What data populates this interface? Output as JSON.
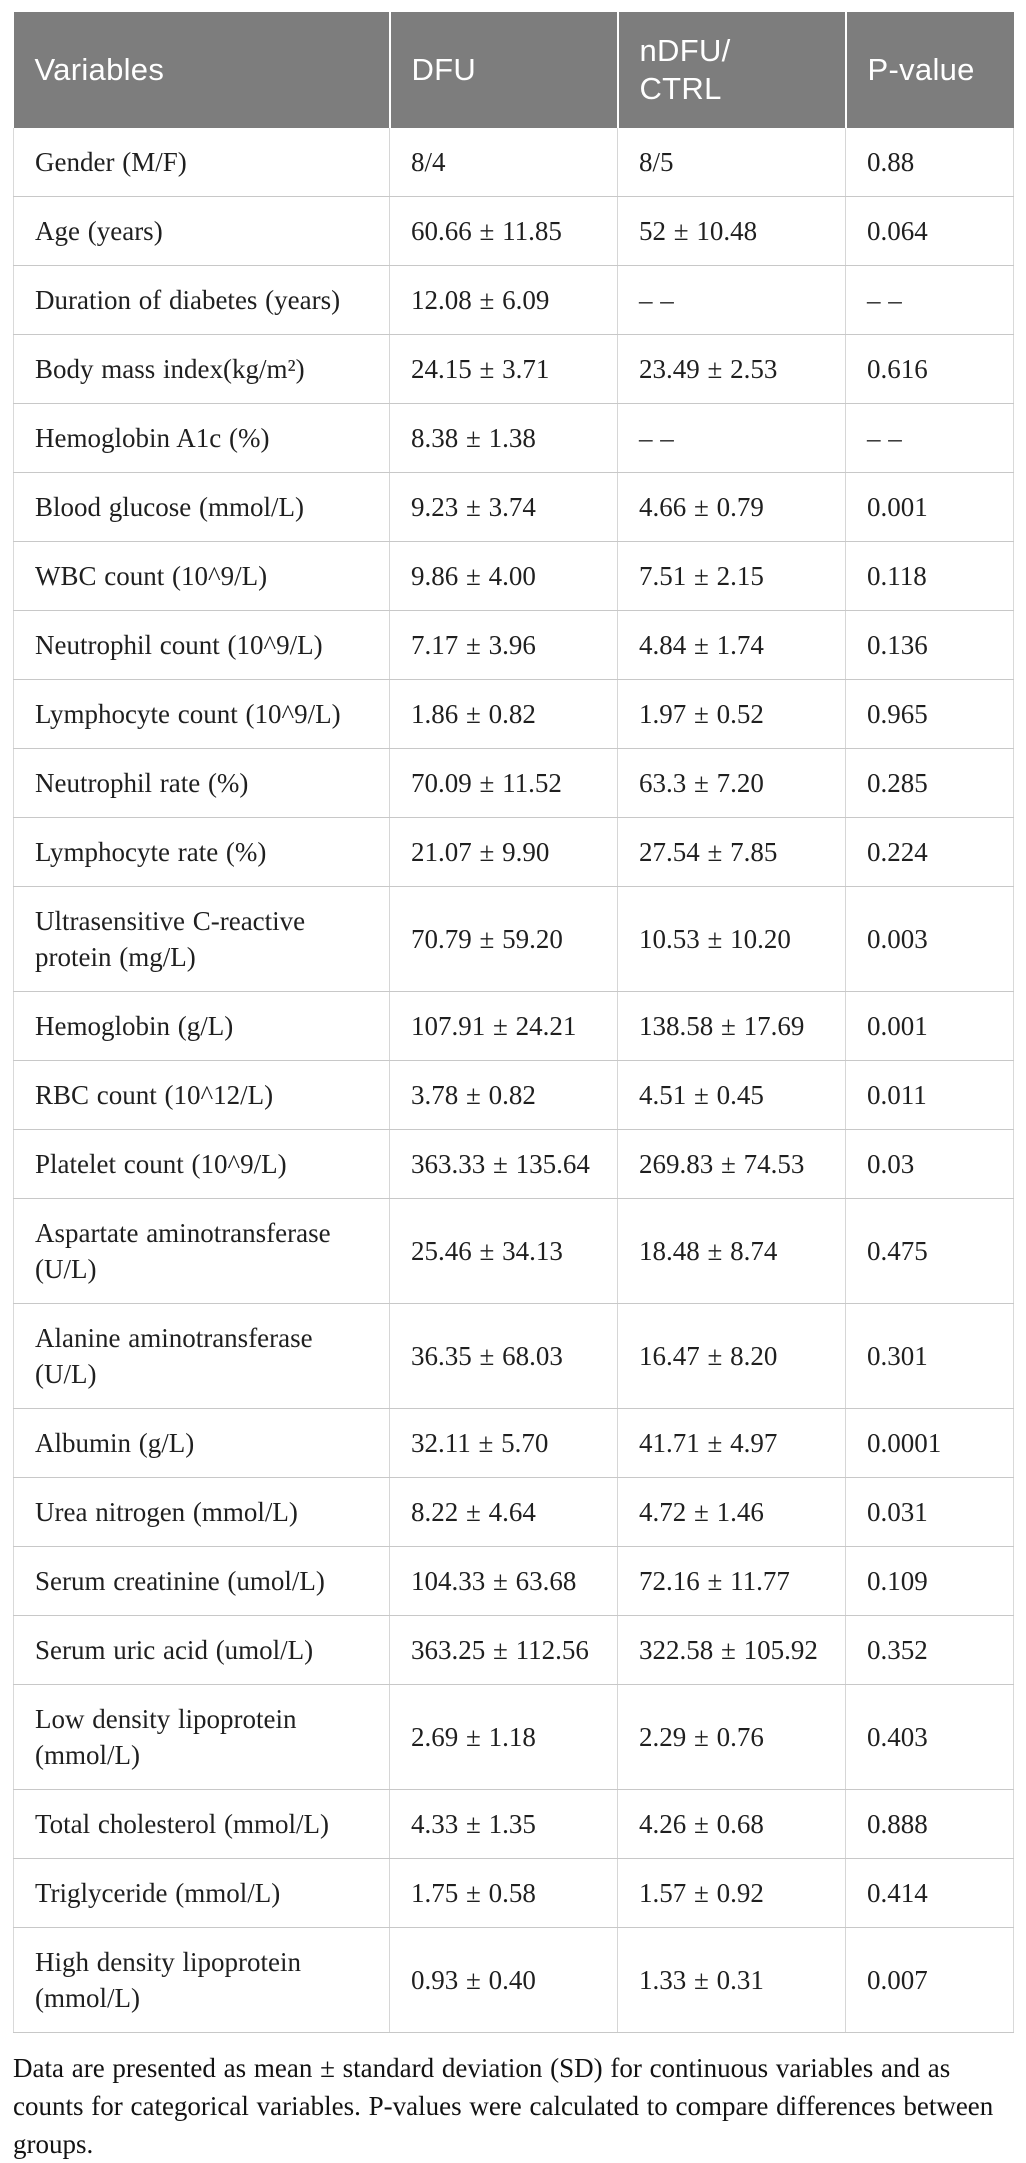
{
  "colors": {
    "header_background": "#7d7d7d",
    "header_text": "#ffffff",
    "body_text": "#1f1f1f",
    "row_border": "#c8c8c8",
    "column_border": "#d6d6d6",
    "page_background": "#ffffff"
  },
  "table": {
    "header": {
      "columns": [
        "Variables",
        "DFU",
        "nDFU/\nCTRL",
        "P-value"
      ]
    },
    "rows": [
      {
        "variable": "Gender (M/F)",
        "dfu": "8/4",
        "ndfu_ctrl": "8/5",
        "p_value": "0.88"
      },
      {
        "variable": "Age (years)",
        "dfu": "60.66 ± 11.85",
        "ndfu_ctrl": "52 ± 10.48",
        "p_value": "0.064"
      },
      {
        "variable": "Duration of diabetes (years)",
        "dfu": "12.08 ± 6.09",
        "ndfu_ctrl": "– –",
        "p_value": "– –"
      },
      {
        "variable": "Body mass index(kg/m²)",
        "dfu": "24.15 ± 3.71",
        "ndfu_ctrl": "23.49 ± 2.53",
        "p_value": "0.616"
      },
      {
        "variable": "Hemoglobin A1c (%)",
        "dfu": "8.38 ± 1.38",
        "ndfu_ctrl": "– –",
        "p_value": "– –"
      },
      {
        "variable": "Blood glucose (mmol/L)",
        "dfu": "9.23 ± 3.74",
        "ndfu_ctrl": "4.66 ± 0.79",
        "p_value": "0.001"
      },
      {
        "variable": "WBC count (10^9/L)",
        "dfu": "9.86 ± 4.00",
        "ndfu_ctrl": "7.51 ± 2.15",
        "p_value": "0.118"
      },
      {
        "variable": "Neutrophil count (10^9/L)",
        "dfu": "7.17 ± 3.96",
        "ndfu_ctrl": "4.84 ± 1.74",
        "p_value": "0.136"
      },
      {
        "variable": "Lymphocyte count (10^9/L)",
        "dfu": "1.86 ± 0.82",
        "ndfu_ctrl": "1.97 ± 0.52",
        "p_value": "0.965"
      },
      {
        "variable": "Neutrophil rate (%)",
        "dfu": "70.09 ± 11.52",
        "ndfu_ctrl": "63.3 ± 7.20",
        "p_value": "0.285"
      },
      {
        "variable": "Lymphocyte rate (%)",
        "dfu": "21.07 ± 9.90",
        "ndfu_ctrl": "27.54 ± 7.85",
        "p_value": "0.224"
      },
      {
        "variable": "Ultrasensitive C-reactive protein (mg/L)",
        "dfu": "70.79 ± 59.20",
        "ndfu_ctrl": "10.53 ± 10.20",
        "p_value": "0.003"
      },
      {
        "variable": "Hemoglobin (g/L)",
        "dfu": "107.91 ± 24.21",
        "ndfu_ctrl": "138.58 ± 17.69",
        "p_value": "0.001"
      },
      {
        "variable": "RBC count (10^12/L)",
        "dfu": "3.78 ± 0.82",
        "ndfu_ctrl": "4.51 ± 0.45",
        "p_value": "0.011"
      },
      {
        "variable": "Platelet count (10^9/L)",
        "dfu": "363.33 ± 135.64",
        "ndfu_ctrl": "269.83 ± 74.53",
        "p_value": "0.03"
      },
      {
        "variable": "Aspartate aminotransferase (U/L)",
        "dfu": "25.46 ± 34.13",
        "ndfu_ctrl": "18.48 ± 8.74",
        "p_value": "0.475"
      },
      {
        "variable": "Alanine aminotransferase (U/L)",
        "dfu": "36.35 ± 68.03",
        "ndfu_ctrl": "16.47 ± 8.20",
        "p_value": "0.301"
      },
      {
        "variable": "Albumin (g/L)",
        "dfu": "32.11 ± 5.70",
        "ndfu_ctrl": "41.71 ± 4.97",
        "p_value": "0.0001"
      },
      {
        "variable": "Urea nitrogen (mmol/L)",
        "dfu": "8.22 ± 4.64",
        "ndfu_ctrl": "4.72 ± 1.46",
        "p_value": "0.031"
      },
      {
        "variable": "Serum creatinine (umol/L)",
        "dfu": "104.33 ± 63.68",
        "ndfu_ctrl": "72.16 ± 11.77",
        "p_value": "0.109"
      },
      {
        "variable": "Serum uric acid (umol/L)",
        "dfu": "363.25 ± 112.56",
        "ndfu_ctrl": "322.58 ± 105.92",
        "p_value": "0.352"
      },
      {
        "variable": "Low density lipoprotein (mmol/L)",
        "dfu": "2.69 ± 1.18",
        "ndfu_ctrl": "2.29 ± 0.76",
        "p_value": "0.403"
      },
      {
        "variable": "Total cholesterol (mmol/L)",
        "dfu": "4.33 ± 1.35",
        "ndfu_ctrl": "4.26 ± 0.68",
        "p_value": "0.888"
      },
      {
        "variable": "Triglyceride (mmol/L)",
        "dfu": "1.75 ± 0.58",
        "ndfu_ctrl": "1.57 ± 0.92",
        "p_value": "0.414"
      },
      {
        "variable": "High density lipoprotein (mmol/L)",
        "dfu": "0.93 ± 0.40",
        "ndfu_ctrl": "1.33 ± 0.31",
        "p_value": "0.007"
      }
    ]
  },
  "footnote": {
    "text": "Data are presented as mean ± standard deviation (SD) for continuous variables and as counts for categorical variables. P-values were calculated to compare differences between groups."
  }
}
